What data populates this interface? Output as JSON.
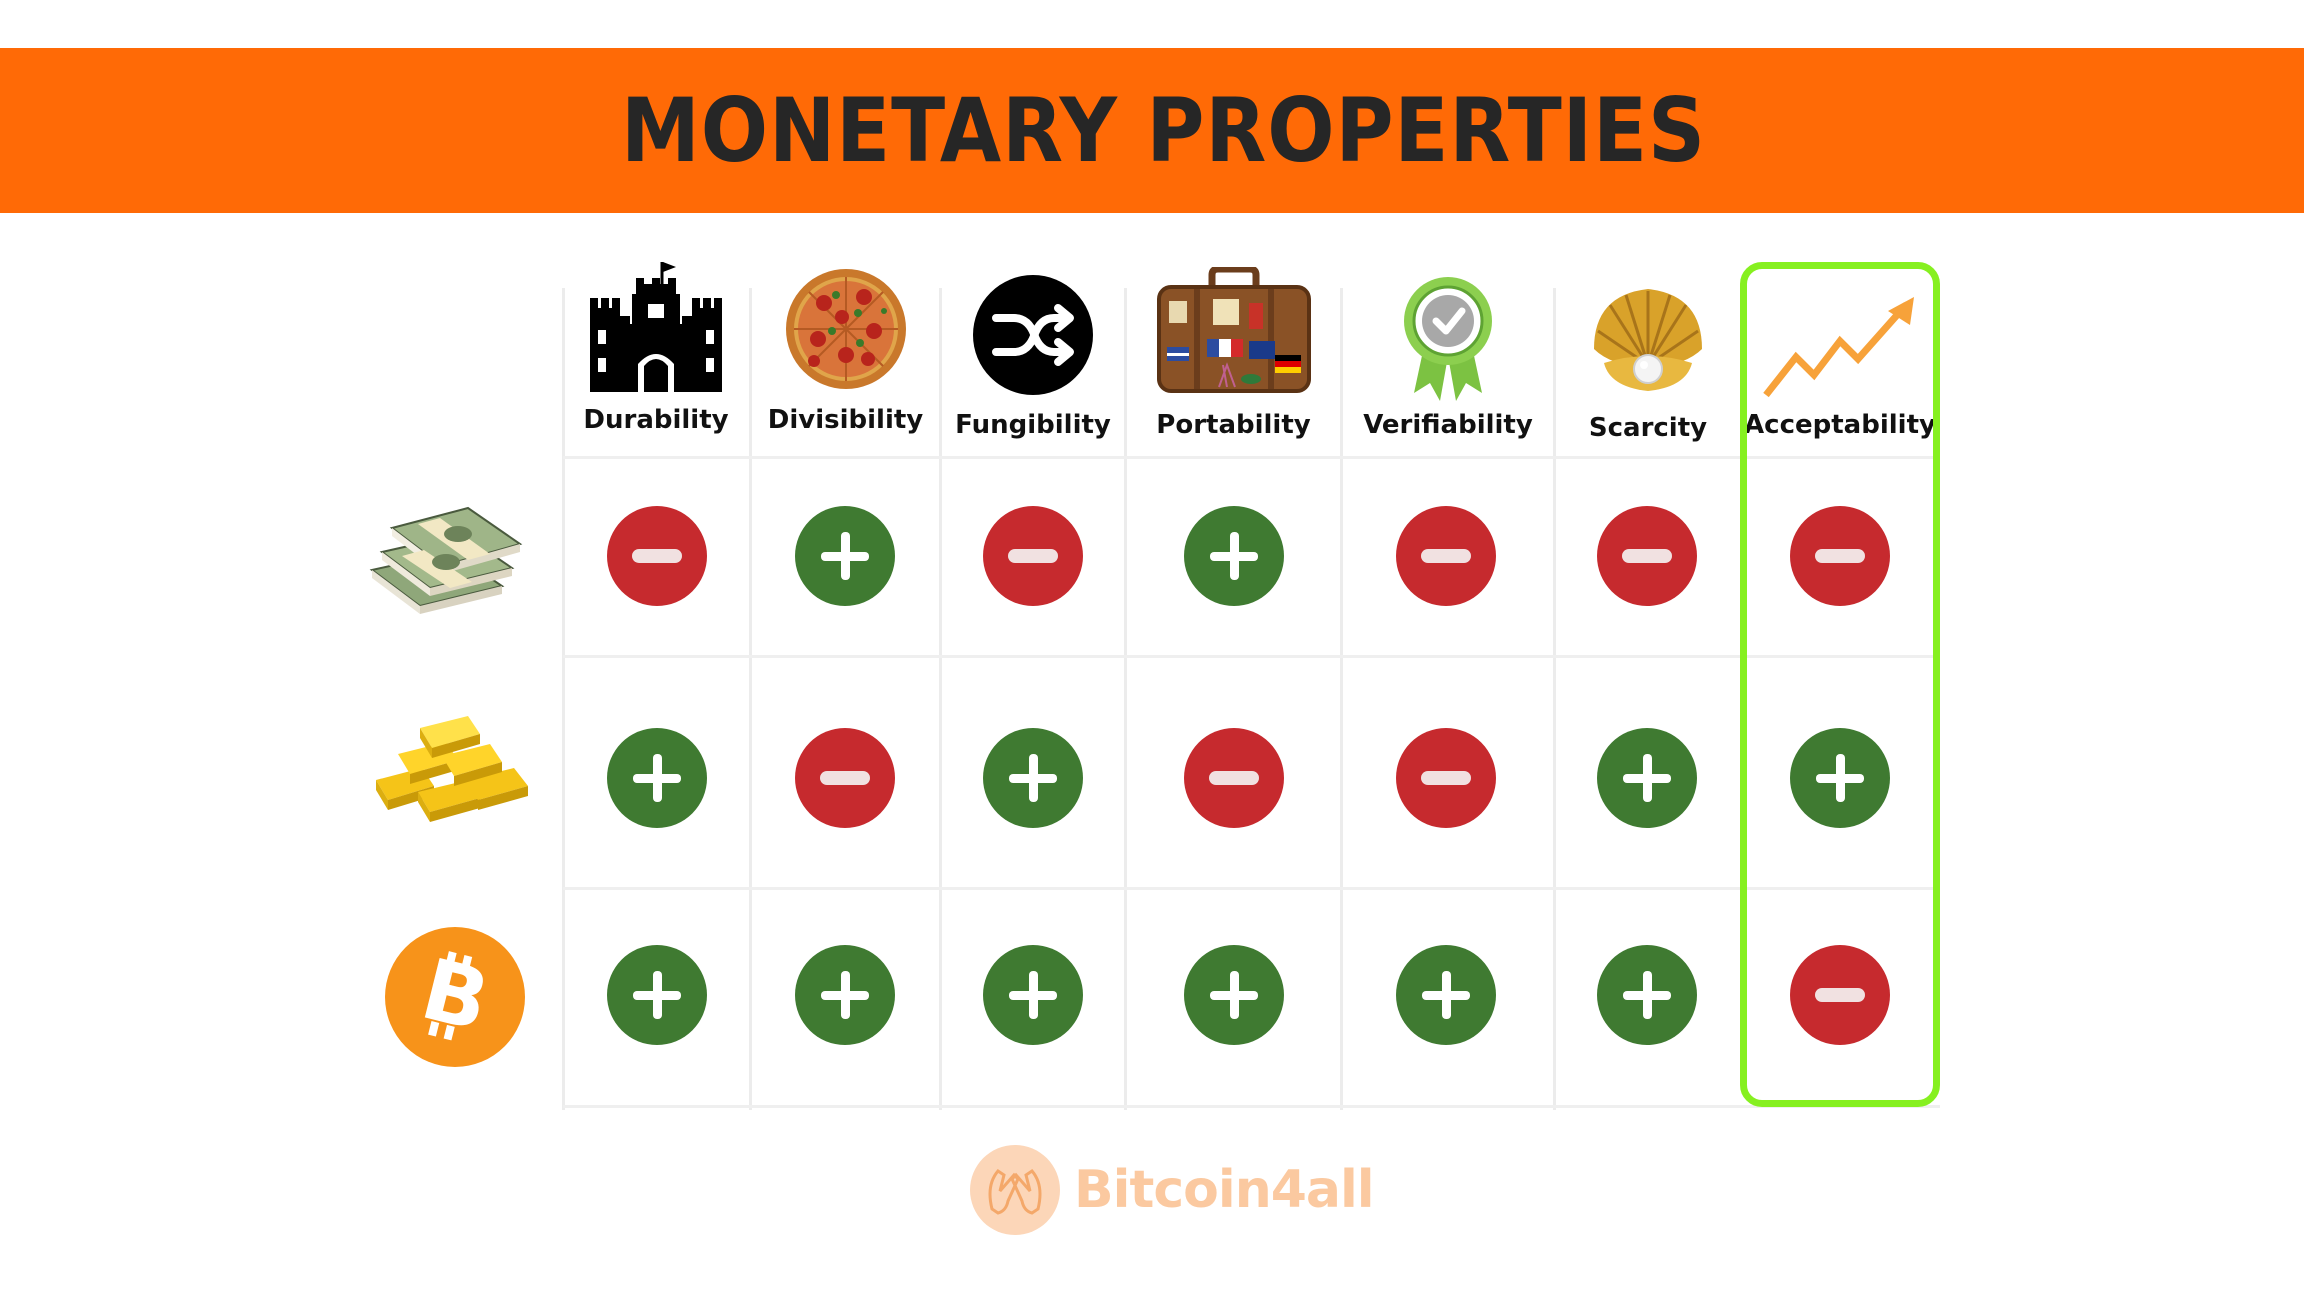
{
  "title": "MONETARY PROPERTIES",
  "columns": [
    {
      "label": "Durability",
      "icon": "castle-icon"
    },
    {
      "label": "Divisibility",
      "icon": "pizza-icon"
    },
    {
      "label": "Fungibility",
      "icon": "shuffle-icon"
    },
    {
      "label": "Portability",
      "icon": "suitcase-icon"
    },
    {
      "label": "Verifiability",
      "icon": "award-badge-icon"
    },
    {
      "label": "Scarcity",
      "icon": "seashell-pearl-icon"
    },
    {
      "label": "Acceptability",
      "icon": "trend-arrow-icon"
    }
  ],
  "rows": [
    {
      "asset_icon": "cash-stack-icon",
      "values": [
        "-",
        "+",
        "-",
        "+",
        "-",
        "-",
        "-"
      ]
    },
    {
      "asset_icon": "gold-bars-icon",
      "values": [
        "+",
        "-",
        "+",
        "-",
        "-",
        "+",
        "+"
      ]
    },
    {
      "asset_icon": "bitcoin-icon",
      "values": [
        "+",
        "+",
        "+",
        "+",
        "+",
        "+",
        "-"
      ]
    }
  ],
  "highlighted_column": "Acceptability",
  "footer": {
    "brand": "Bitcoin4all"
  },
  "colors": {
    "banner": "#ff6a06",
    "title": "#262626",
    "plus": "#3f7a31",
    "minus": "#c62a2e",
    "highlight_border": "#86f020",
    "bitcoin": "#f7931a",
    "footer_text": "#fbc9a0"
  }
}
